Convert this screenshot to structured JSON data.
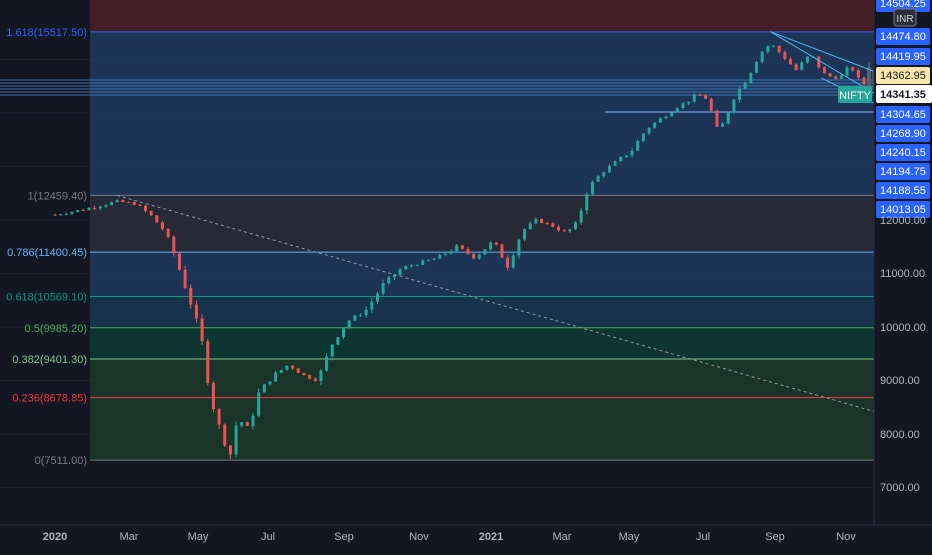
{
  "chart_data": {
    "type": "candlestick",
    "instrument": "NIFTY",
    "currency": "INR",
    "last_price": "14341.35",
    "x_ticks": [
      "2020",
      "Mar",
      "May",
      "Jul",
      "Sep",
      "Nov",
      "2021",
      "Mar",
      "May",
      "Jul",
      "Sep",
      "Nov"
    ],
    "y_axis_labels": [
      "14504.25",
      "14474.80",
      "14419.95",
      "14362.95",
      "14304.65",
      "14268.90",
      "14240.15",
      "14194.75",
      "14188.55",
      "14013.05",
      "12000.00",
      "11000.00",
      "10000.00",
      "9000.00",
      "8000.00",
      "7000.00"
    ],
    "ylim": [
      7000,
      15600
    ],
    "fib_levels": [
      {
        "ratio": "1.618",
        "price": 15517.5,
        "label": "1.618(15517.50)",
        "color": "#2962ff"
      },
      {
        "ratio": "1",
        "price": 12459.4,
        "label": "1(12459.40)",
        "color": "#787b86"
      },
      {
        "ratio": "0.786",
        "price": 11400.45,
        "label": "0.786(11400.45)",
        "color": "#64b5f6"
      },
      {
        "ratio": "0.618",
        "price": 10569.1,
        "label": "0.618(10569.10)",
        "color": "#089981"
      },
      {
        "ratio": "0.5",
        "price": 9985.2,
        "label": "0.5(9985.20)",
        "color": "#4caf50"
      },
      {
        "ratio": "0.382",
        "price": 9401.3,
        "label": "0.382(9401.30)",
        "color": "#81c784"
      },
      {
        "ratio": "0.236",
        "price": 8678.85,
        "label": "0.236(8678.85)",
        "color": "#f23645"
      },
      {
        "ratio": "0",
        "price": 7511.0,
        "label": "0(7511.00)",
        "color": "#787b86"
      }
    ],
    "price_path": [
      {
        "t": 0,
        "p": 12100
      },
      {
        "t": 0.8,
        "p": 12200
      },
      {
        "t": 1.7,
        "p": 12350
      },
      {
        "t": 2.2,
        "p": 12300
      },
      {
        "t": 2.6,
        "p": 12100
      },
      {
        "t": 3.0,
        "p": 11800
      },
      {
        "t": 3.3,
        "p": 11300
      },
      {
        "t": 3.7,
        "p": 10500
      },
      {
        "t": 4.0,
        "p": 9800
      },
      {
        "t": 4.3,
        "p": 8600
      },
      {
        "t": 4.6,
        "p": 7900
      },
      {
        "t": 4.8,
        "p": 7610
      },
      {
        "t": 5.0,
        "p": 8300
      },
      {
        "t": 5.3,
        "p": 8100
      },
      {
        "t": 5.6,
        "p": 8800
      },
      {
        "t": 6.0,
        "p": 9100
      },
      {
        "t": 6.4,
        "p": 9300
      },
      {
        "t": 6.8,
        "p": 9100
      },
      {
        "t": 7.2,
        "p": 9000
      },
      {
        "t": 7.6,
        "p": 9700
      },
      {
        "t": 8.0,
        "p": 10100
      },
      {
        "t": 8.5,
        "p": 10300
      },
      {
        "t": 9.0,
        "p": 10800
      },
      {
        "t": 9.5,
        "p": 11100
      },
      {
        "t": 10.0,
        "p": 11200
      },
      {
        "t": 10.5,
        "p": 11300
      },
      {
        "t": 11.0,
        "p": 11500
      },
      {
        "t": 11.5,
        "p": 11300
      },
      {
        "t": 12.0,
        "p": 11600
      },
      {
        "t": 12.4,
        "p": 11150
      },
      {
        "t": 12.8,
        "p": 11800
      },
      {
        "t": 13.2,
        "p": 12000
      },
      {
        "t": 13.6,
        "p": 11900
      },
      {
        "t": 14.0,
        "p": 11750
      },
      {
        "t": 14.3,
        "p": 11950
      },
      {
        "t": 14.6,
        "p": 12600
      },
      {
        "t": 15.0,
        "p": 12900
      },
      {
        "t": 15.4,
        "p": 13100
      },
      {
        "t": 15.8,
        "p": 13300
      },
      {
        "t": 16.2,
        "p": 13700
      },
      {
        "t": 16.6,
        "p": 13900
      },
      {
        "t": 17.0,
        "p": 14100
      },
      {
        "t": 17.3,
        "p": 14200
      },
      {
        "t": 17.6,
        "p": 14350
      },
      {
        "t": 17.9,
        "p": 14250
      },
      {
        "t": 18.1,
        "p": 13700
      },
      {
        "t": 18.3,
        "p": 13800
      },
      {
        "t": 18.6,
        "p": 14300
      },
      {
        "t": 19.0,
        "p": 14700
      },
      {
        "t": 19.3,
        "p": 15100
      },
      {
        "t": 19.6,
        "p": 15300
      },
      {
        "t": 19.9,
        "p": 15100
      },
      {
        "t": 20.3,
        "p": 14800
      },
      {
        "t": 20.7,
        "p": 15100
      },
      {
        "t": 21.1,
        "p": 14700
      },
      {
        "t": 21.5,
        "p": 14650
      },
      {
        "t": 21.8,
        "p": 14900
      },
      {
        "t": 22.1,
        "p": 14500
      },
      {
        "t": 22.4,
        "p": 14700
      },
      {
        "t": 22.7,
        "p": 14400
      },
      {
        "t": 23.0,
        "p": 14350
      }
    ],
    "trendlines": [
      {
        "style": "dashed",
        "from": {
          "t": 1.7,
          "p": 12460
        },
        "to": {
          "t": 26.3,
          "p": 7670
        }
      },
      {
        "style": "solid",
        "from": {
          "t": 19.6,
          "p": 15520
        },
        "to": {
          "t": 23.7,
          "p": 14450
        }
      },
      {
        "style": "solid",
        "from": {
          "t": 19.6,
          "p": 15520
        },
        "to": {
          "t": 27.8,
          "p": 12200
        }
      },
      {
        "style": "solid",
        "from": {
          "t": 21.0,
          "p": 14650
        },
        "to": {
          "t": 27.0,
          "p": 12700
        }
      }
    ],
    "grid": true,
    "colors": {
      "up": "#26a69a",
      "down": "#ef5350",
      "background": "#131722",
      "axis_text": "#b2b5be",
      "last_price": "#26a69a"
    }
  },
  "legend_label": "NIFTY",
  "currency_badge": "INR"
}
